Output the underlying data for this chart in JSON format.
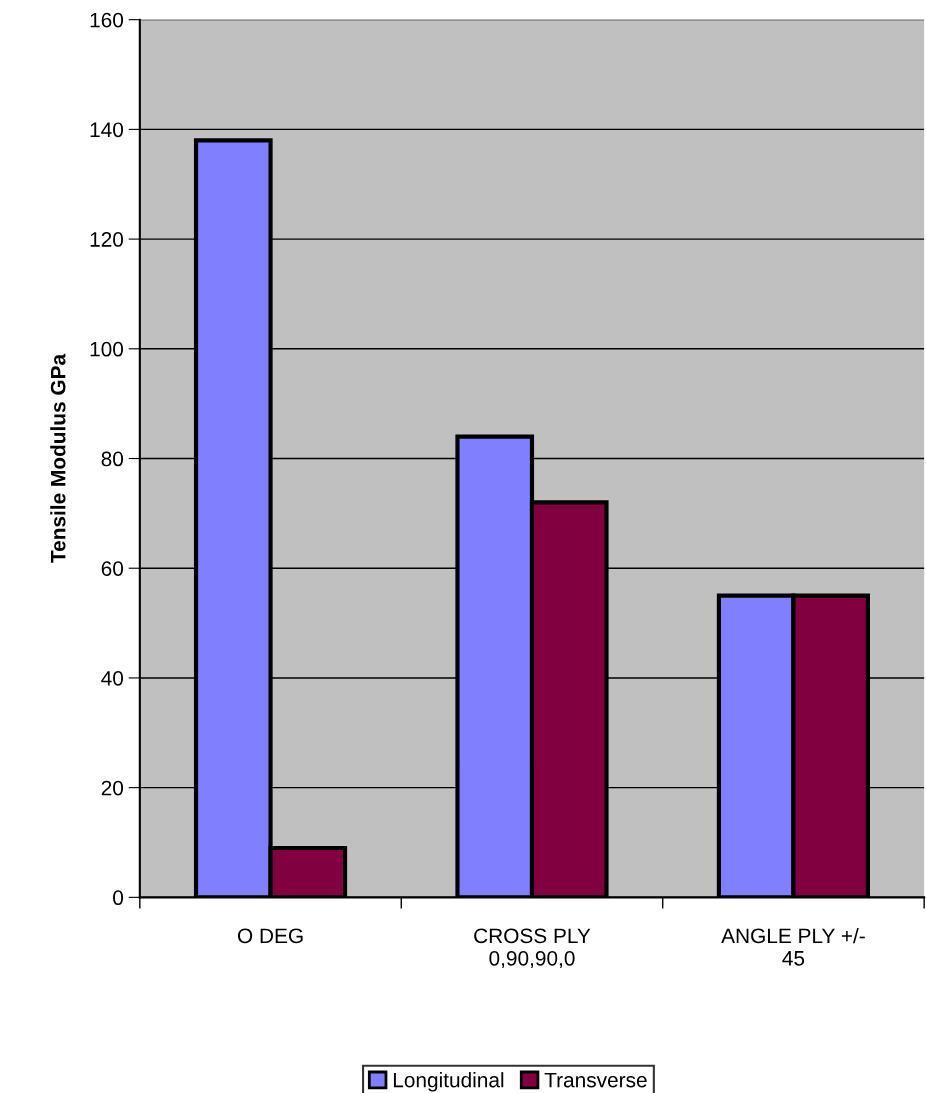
{
  "chart_data": {
    "type": "bar",
    "ylabel": "Tensile Modulus GPa",
    "categories": [
      "O DEG",
      "CROSS PLY\n0,90,90,0",
      "ANGLE PLY +/-\n45"
    ],
    "series": [
      {
        "name": "Longitudinal",
        "color": "#8080ff",
        "values": [
          138,
          84,
          55
        ]
      },
      {
        "name": "Transverse",
        "color": "#800040",
        "values": [
          9,
          72,
          55
        ]
      }
    ],
    "ylim": [
      0,
      160
    ],
    "yticks": [
      0,
      20,
      40,
      60,
      80,
      100,
      120,
      140,
      160
    ],
    "grid": "y",
    "legend": "bottom"
  }
}
